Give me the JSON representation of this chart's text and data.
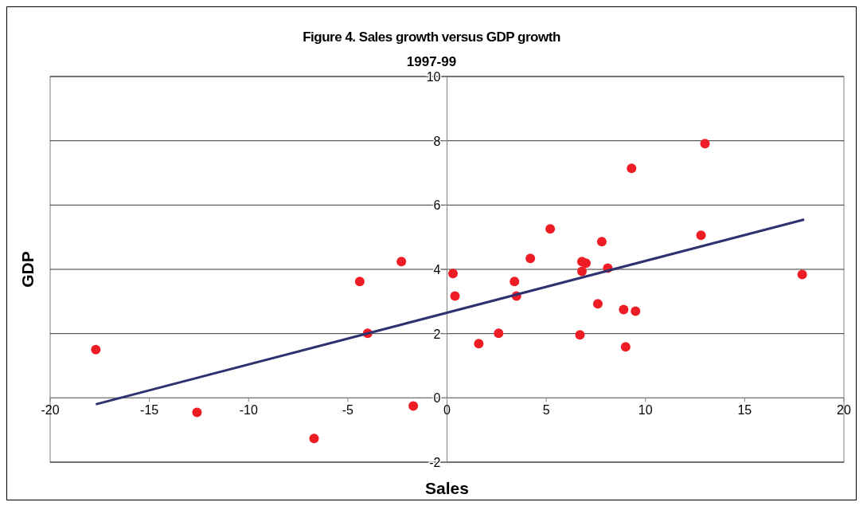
{
  "chart_data": {
    "type": "scatter",
    "title": "Figure 4. Sales growth versus GDP growth",
    "subtitle": "1997-99",
    "xlabel": "Sales",
    "ylabel": "GDP",
    "xlim": [
      -20,
      20
    ],
    "xticks": [
      -20,
      -15,
      -10,
      -5,
      0,
      5,
      10,
      15,
      20
    ],
    "ylim": [
      -2,
      10
    ],
    "yticks": [
      -2,
      0,
      2,
      4,
      6,
      8,
      10
    ],
    "grid": "y",
    "series": [
      {
        "color": "#ee1c25",
        "marker": "circle",
        "x": [
          -17.7,
          -12.6,
          -6.7,
          -4.4,
          -4.0,
          -2.3,
          -1.7,
          0.3,
          0.4,
          1.6,
          2.6,
          3.4,
          3.5,
          4.2,
          5.2,
          6.7,
          6.8,
          6.8,
          7.0,
          7.6,
          7.8,
          8.1,
          8.9,
          9.0,
          9.3,
          9.5,
          12.8,
          13.0,
          17.9
        ],
        "values": [
          1.5,
          -0.45,
          -1.26,
          3.62,
          2.01,
          4.24,
          -0.25,
          3.87,
          3.17,
          1.69,
          2.01,
          3.62,
          3.17,
          4.34,
          5.26,
          1.96,
          3.94,
          4.24,
          4.19,
          2.93,
          4.86,
          4.04,
          2.75,
          1.59,
          7.14,
          2.7,
          5.06,
          7.91,
          3.84
        ]
      },
      {
        "type": "line",
        "color": "#2e3170",
        "marker": "none",
        "x": [
          -17.7,
          18.0
        ],
        "values": [
          -0.2,
          5.55
        ]
      }
    ]
  }
}
